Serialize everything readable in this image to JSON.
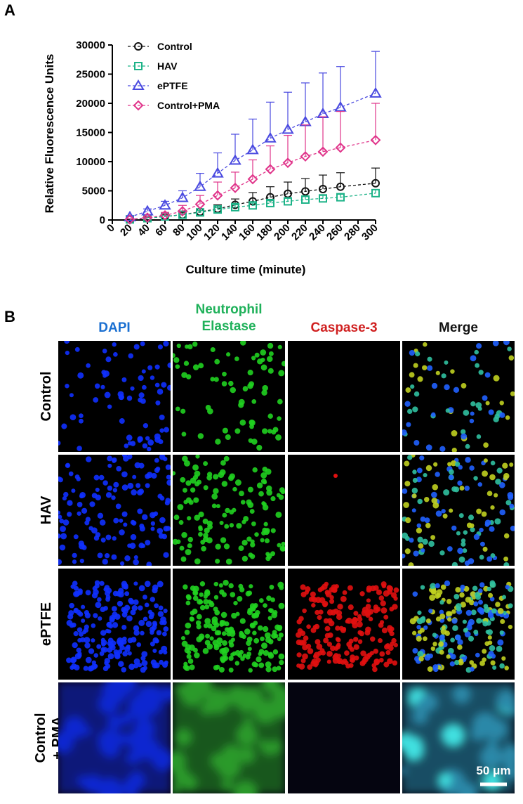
{
  "panel_labels": [
    "A",
    "B"
  ],
  "chart_data": {
    "type": "line",
    "x_label": "Culture time (minute)",
    "y_label": "Relative Fluorescence Units",
    "x": [
      20,
      40,
      60,
      80,
      100,
      120,
      140,
      160,
      180,
      200,
      220,
      240,
      260,
      300
    ],
    "xlim": [
      0,
      300
    ],
    "xticks": [
      0,
      20,
      40,
      60,
      80,
      100,
      120,
      140,
      160,
      180,
      200,
      220,
      240,
      260,
      280,
      300
    ],
    "ylim": [
      0,
      30000
    ],
    "yticks": [
      0,
      5000,
      10000,
      15000,
      20000,
      25000,
      30000
    ],
    "legend": "upper left",
    "series": [
      {
        "name": "Control",
        "color": "#111111",
        "marker": "circle",
        "values": [
          100,
          300,
          600,
          900,
          1400,
          1900,
          2600,
          3200,
          3900,
          4500,
          4900,
          5300,
          5700,
          6300
        ],
        "errors": [
          100,
          200,
          300,
          400,
          500,
          700,
          1000,
          1500,
          1800,
          2000,
          2200,
          2400,
          2400,
          2600
        ]
      },
      {
        "name": "HAV",
        "color": "#1db388",
        "marker": "square",
        "values": [
          100,
          300,
          600,
          900,
          1300,
          1800,
          2200,
          2500,
          2900,
          3200,
          3500,
          3700,
          3900,
          4600
        ],
        "errors": [
          100,
          100,
          200,
          200,
          300,
          300,
          400,
          400,
          400,
          500,
          500,
          500,
          500,
          600
        ]
      },
      {
        "name": "ePTFE",
        "color": "#4a4ae0",
        "marker": "triangle",
        "values": [
          500,
          1500,
          2500,
          3800,
          5700,
          8000,
          10200,
          12000,
          14000,
          15500,
          16800,
          18200,
          19300,
          21700
        ],
        "errors": [
          200,
          400,
          700,
          1200,
          2300,
          3500,
          4500,
          5300,
          6200,
          6400,
          6700,
          7000,
          7000,
          7200
        ]
      },
      {
        "name": "Control+PMA",
        "color": "#e0348a",
        "marker": "diamond",
        "values": [
          100,
          400,
          800,
          1500,
          2700,
          4200,
          5500,
          7000,
          8700,
          9800,
          10900,
          11700,
          12400,
          13700
        ],
        "errors": [
          100,
          200,
          500,
          1000,
          1500,
          2300,
          2700,
          3300,
          4000,
          4700,
          5400,
          6000,
          6200,
          6300
        ]
      }
    ]
  },
  "panel_b": {
    "columns": [
      "DAPI",
      "Neutrophil Elastase",
      "Caspase-3",
      "Merge"
    ],
    "column_colors": [
      "#1a6fd1",
      "#1fb15a",
      "#d02020",
      "#111111"
    ],
    "rows": [
      "Control",
      "HAV",
      "ePTFE",
      "Control + PMA"
    ],
    "scale_bar": "50 μm"
  }
}
